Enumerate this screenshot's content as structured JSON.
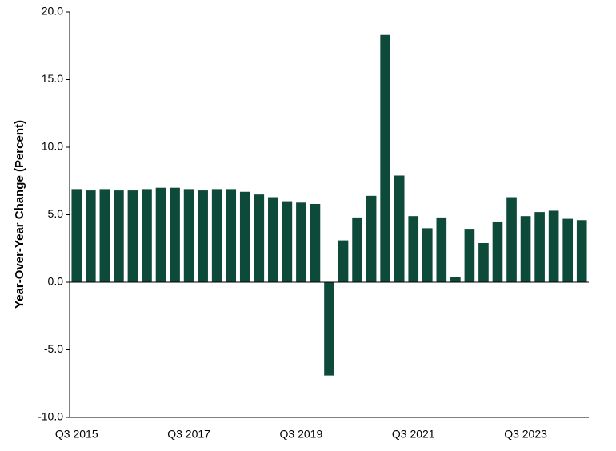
{
  "chart_data": {
    "type": "bar",
    "y_label": "Year-Over-Year Change (Percent)",
    "categories": [
      "Q3 2015",
      null,
      null,
      null,
      null,
      null,
      null,
      null,
      "Q3 2017",
      null,
      null,
      null,
      null,
      null,
      null,
      null,
      "Q3 2019",
      null,
      null,
      null,
      null,
      null,
      null,
      null,
      "Q3 2021",
      null,
      null,
      null,
      null,
      null,
      null,
      null,
      "Q3 2023",
      null,
      null,
      null,
      null
    ],
    "values": [
      6.9,
      6.8,
      6.9,
      6.8,
      6.8,
      6.9,
      7.0,
      7.0,
      6.9,
      6.8,
      6.9,
      6.9,
      6.7,
      6.5,
      6.3,
      6.0,
      5.9,
      5.8,
      -6.9,
      3.1,
      4.8,
      6.4,
      18.3,
      7.9,
      4.9,
      4.0,
      4.8,
      0.4,
      3.9,
      2.9,
      4.5,
      6.3,
      4.9,
      5.2,
      5.3,
      4.7,
      4.6
    ],
    "color": "#0d4a3a",
    "ylim": [
      -10,
      20
    ],
    "yticks": [
      {
        "value": -10,
        "label": "-10.0"
      },
      {
        "value": -5,
        "label": "-5.0"
      },
      {
        "value": 0,
        "label": "0.0"
      },
      {
        "value": 5,
        "label": "5.0"
      },
      {
        "value": 10,
        "label": "10.0"
      },
      {
        "value": 15,
        "label": "15.0"
      },
      {
        "value": 20,
        "label": "20.0"
      }
    ],
    "grid": false
  }
}
